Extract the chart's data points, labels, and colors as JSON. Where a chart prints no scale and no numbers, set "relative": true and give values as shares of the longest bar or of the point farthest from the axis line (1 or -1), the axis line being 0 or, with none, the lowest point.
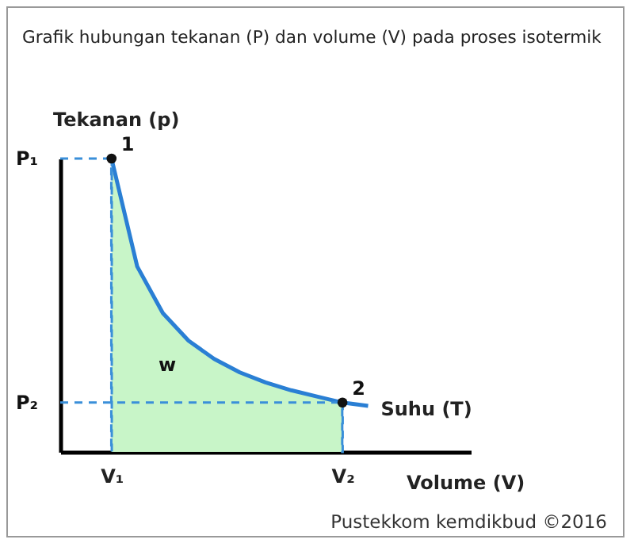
{
  "chart_data": {
    "type": "line",
    "relative": true,
    "title": "Grafik hubungan tekanan (P) dan volume (V) pada proses isotermik",
    "xlabel": "Volume (V)",
    "ylabel": "Tekanan (p)",
    "categories": [
      null,
      null,
      "V₁",
      null,
      null,
      null,
      null,
      null,
      null,
      null,
      null,
      "V₂",
      null,
      null,
      null,
      null,
      null
    ],
    "series": [
      {
        "type": "area",
        "color": "#c8f5c8",
        "values": [
          null,
          null,
          1,
          0.632,
          0.473,
          0.379,
          0.317,
          0.271,
          0.237,
          0.21,
          0.189,
          0.168,
          null,
          null,
          null,
          null,
          null
        ]
      },
      {
        "name": "Suhu (T)",
        "color": "#2a7fd4",
        "values": [
          null,
          null,
          1,
          0.632,
          0.473,
          0.379,
          0.317,
          0.271,
          0.237,
          0.21,
          0.189,
          0.168,
          0.157,
          null,
          null,
          null,
          null
        ]
      },
      {
        "line_style": "dashed",
        "color": "#3a8fd9",
        "values": [
          1,
          1,
          1,
          null,
          null,
          null,
          null,
          null,
          null,
          null,
          null,
          null,
          null,
          null,
          null,
          null,
          null
        ]
      },
      {
        "line_style": "dashed",
        "color": "#3a8fd9",
        "values": [
          0.168,
          0.168,
          0.168,
          0.168,
          0.168,
          0.168,
          0.168,
          0.168,
          0.168,
          0.168,
          0.168,
          0.168,
          null,
          null,
          null,
          null,
          null
        ]
      },
      {
        "type": "bar",
        "line_style": "dashed",
        "color": "#3a8fd9",
        "values": [
          null,
          null,
          1,
          null,
          null,
          null,
          null,
          null,
          null,
          null,
          null,
          0.168,
          null,
          null,
          null,
          null,
          null
        ]
      },
      {
        "type": "scatter",
        "marker": "circle",
        "color": "#111111",
        "values": [
          null,
          null,
          1,
          null,
          null,
          null,
          null,
          null,
          null,
          null,
          null,
          0.168,
          null,
          null,
          null,
          null,
          null
        ]
      }
    ],
    "annotations": [
      "P₁",
      "P₂",
      {
        "text": "1",
        "x": "V₁",
        "y": 1
      },
      {
        "text": "2",
        "x": "V₂",
        "y": 0.168
      },
      "w",
      "Pustekkom kemdikbud ©2016"
    ]
  }
}
